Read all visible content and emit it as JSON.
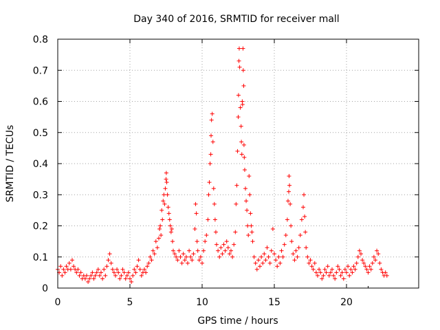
{
  "chart_data": {
    "type": "scatter",
    "title": "Day 340 of 2016, SRMTID for receiver mall",
    "xlabel": "GPS time / hours",
    "ylabel": "SRMTID / TECUs",
    "xlim": [
      0,
      25
    ],
    "ylim": [
      0,
      0.8
    ],
    "xticks": [
      0,
      5,
      10,
      15,
      20
    ],
    "xtick_labels": [
      "0",
      "5",
      "10",
      "15",
      "20"
    ],
    "yticks": [
      0,
      0.1,
      0.2,
      0.3,
      0.4,
      0.5,
      0.6,
      0.7,
      0.8
    ],
    "ytick_labels": [
      "0",
      "0.1",
      "0.2",
      "0.3",
      "0.4",
      "0.5",
      "0.6",
      "0.7",
      "0.8"
    ],
    "grid": true,
    "marker": "+",
    "color": "#ff0000",
    "series": [
      {
        "name": "SRMTID",
        "points": [
          [
            0.0,
            0.06
          ],
          [
            0.1,
            0.05
          ],
          [
            0.2,
            0.07
          ],
          [
            0.3,
            0.04
          ],
          [
            0.4,
            0.06
          ],
          [
            0.5,
            0.05
          ],
          [
            0.6,
            0.07
          ],
          [
            0.7,
            0.06
          ],
          [
            0.8,
            0.08
          ],
          [
            0.9,
            0.06
          ],
          [
            1.0,
            0.09
          ],
          [
            1.1,
            0.07
          ],
          [
            1.2,
            0.06
          ],
          [
            1.3,
            0.05
          ],
          [
            1.4,
            0.06
          ],
          [
            1.5,
            0.04
          ],
          [
            1.6,
            0.05
          ],
          [
            1.7,
            0.03
          ],
          [
            1.8,
            0.04
          ],
          [
            1.9,
            0.03
          ],
          [
            2.0,
            0.04
          ],
          [
            2.1,
            0.02
          ],
          [
            2.2,
            0.03
          ],
          [
            2.3,
            0.04
          ],
          [
            2.4,
            0.05
          ],
          [
            2.5,
            0.03
          ],
          [
            2.6,
            0.04
          ],
          [
            2.7,
            0.05
          ],
          [
            2.8,
            0.06
          ],
          [
            2.9,
            0.04
          ],
          [
            3.0,
            0.05
          ],
          [
            3.1,
            0.03
          ],
          [
            3.2,
            0.06
          ],
          [
            3.3,
            0.04
          ],
          [
            3.4,
            0.07
          ],
          [
            3.5,
            0.09
          ],
          [
            3.6,
            0.11
          ],
          [
            3.7,
            0.08
          ],
          [
            3.8,
            0.06
          ],
          [
            3.9,
            0.05
          ],
          [
            4.0,
            0.04
          ],
          [
            4.1,
            0.06
          ],
          [
            4.2,
            0.05
          ],
          [
            4.3,
            0.03
          ],
          [
            4.4,
            0.04
          ],
          [
            4.5,
            0.06
          ],
          [
            4.6,
            0.05
          ],
          [
            4.7,
            0.03
          ],
          [
            4.8,
            0.04
          ],
          [
            4.9,
            0.05
          ],
          [
            5.0,
            0.03
          ],
          [
            5.1,
            0.02
          ],
          [
            5.2,
            0.04
          ],
          [
            5.3,
            0.06
          ],
          [
            5.4,
            0.05
          ],
          [
            5.5,
            0.07
          ],
          [
            5.6,
            0.09
          ],
          [
            5.7,
            0.06
          ],
          [
            5.8,
            0.04
          ],
          [
            5.9,
            0.05
          ],
          [
            6.0,
            0.06
          ],
          [
            6.1,
            0.05
          ],
          [
            6.2,
            0.07
          ],
          [
            6.3,
            0.08
          ],
          [
            6.4,
            0.1
          ],
          [
            6.5,
            0.09
          ],
          [
            6.6,
            0.12
          ],
          [
            6.7,
            0.11
          ],
          [
            6.8,
            0.15
          ],
          [
            6.9,
            0.13
          ],
          [
            7.0,
            0.16
          ],
          [
            7.05,
            0.19
          ],
          [
            7.1,
            0.2
          ],
          [
            7.15,
            0.17
          ],
          [
            7.2,
            0.25
          ],
          [
            7.25,
            0.22
          ],
          [
            7.3,
            0.28
          ],
          [
            7.35,
            0.3
          ],
          [
            7.4,
            0.27
          ],
          [
            7.45,
            0.32
          ],
          [
            7.5,
            0.35
          ],
          [
            7.52,
            0.37
          ],
          [
            7.55,
            0.34
          ],
          [
            7.6,
            0.3
          ],
          [
            7.65,
            0.26
          ],
          [
            7.7,
            0.24
          ],
          [
            7.75,
            0.22
          ],
          [
            7.8,
            0.2
          ],
          [
            7.85,
            0.18
          ],
          [
            7.9,
            0.19
          ],
          [
            7.95,
            0.15
          ],
          [
            8.0,
            0.12
          ],
          [
            8.1,
            0.11
          ],
          [
            8.2,
            0.1
          ],
          [
            8.3,
            0.09
          ],
          [
            8.4,
            0.12
          ],
          [
            8.5,
            0.1
          ],
          [
            8.6,
            0.08
          ],
          [
            8.7,
            0.11
          ],
          [
            8.8,
            0.09
          ],
          [
            8.9,
            0.1
          ],
          [
            9.0,
            0.08
          ],
          [
            9.1,
            0.12
          ],
          [
            9.2,
            0.1
          ],
          [
            9.3,
            0.09
          ],
          [
            9.4,
            0.11
          ],
          [
            9.5,
            0.19
          ],
          [
            9.55,
            0.27
          ],
          [
            9.6,
            0.24
          ],
          [
            9.65,
            0.15
          ],
          [
            9.7,
            0.12
          ],
          [
            9.8,
            0.09
          ],
          [
            9.9,
            0.1
          ],
          [
            10.0,
            0.08
          ],
          [
            10.1,
            0.12
          ],
          [
            10.2,
            0.15
          ],
          [
            10.3,
            0.17
          ],
          [
            10.4,
            0.22
          ],
          [
            10.45,
            0.3
          ],
          [
            10.5,
            0.34
          ],
          [
            10.55,
            0.4
          ],
          [
            10.6,
            0.43
          ],
          [
            10.62,
            0.49
          ],
          [
            10.65,
            0.54
          ],
          [
            10.7,
            0.56
          ],
          [
            10.75,
            0.47
          ],
          [
            10.8,
            0.32
          ],
          [
            10.85,
            0.27
          ],
          [
            10.9,
            0.22
          ],
          [
            10.95,
            0.18
          ],
          [
            11.0,
            0.14
          ],
          [
            11.1,
            0.12
          ],
          [
            11.2,
            0.1
          ],
          [
            11.3,
            0.13
          ],
          [
            11.4,
            0.11
          ],
          [
            11.5,
            0.14
          ],
          [
            11.6,
            0.12
          ],
          [
            11.7,
            0.15
          ],
          [
            11.8,
            0.13
          ],
          [
            11.9,
            0.11
          ],
          [
            12.0,
            0.12
          ],
          [
            12.1,
            0.1
          ],
          [
            12.2,
            0.14
          ],
          [
            12.3,
            0.18
          ],
          [
            12.35,
            0.27
          ],
          [
            12.4,
            0.33
          ],
          [
            12.45,
            0.44
          ],
          [
            12.5,
            0.55
          ],
          [
            12.52,
            0.62
          ],
          [
            12.55,
            0.73
          ],
          [
            12.57,
            0.77
          ],
          [
            12.6,
            0.71
          ],
          [
            12.65,
            0.58
          ],
          [
            12.7,
            0.52
          ],
          [
            12.72,
            0.47
          ],
          [
            12.75,
            0.43
          ],
          [
            12.78,
            0.6
          ],
          [
            12.8,
            0.59
          ],
          [
            12.83,
            0.77
          ],
          [
            12.85,
            0.7
          ],
          [
            12.88,
            0.65
          ],
          [
            12.9,
            0.46
          ],
          [
            12.92,
            0.42
          ],
          [
            12.95,
            0.38
          ],
          [
            13.0,
            0.32
          ],
          [
            13.05,
            0.28
          ],
          [
            13.1,
            0.25
          ],
          [
            13.15,
            0.2
          ],
          [
            13.2,
            0.17
          ],
          [
            13.25,
            0.36
          ],
          [
            13.3,
            0.3
          ],
          [
            13.35,
            0.24
          ],
          [
            13.4,
            0.2
          ],
          [
            13.45,
            0.18
          ],
          [
            13.5,
            0.15
          ],
          [
            13.6,
            0.1
          ],
          [
            13.7,
            0.08
          ],
          [
            13.8,
            0.06
          ],
          [
            13.9,
            0.09
          ],
          [
            14.0,
            0.07
          ],
          [
            14.1,
            0.1
          ],
          [
            14.2,
            0.08
          ],
          [
            14.3,
            0.11
          ],
          [
            14.4,
            0.09
          ],
          [
            14.5,
            0.13
          ],
          [
            14.6,
            0.1
          ],
          [
            14.7,
            0.08
          ],
          [
            14.8,
            0.12
          ],
          [
            14.9,
            0.19
          ],
          [
            15.0,
            0.11
          ],
          [
            15.1,
            0.09
          ],
          [
            15.2,
            0.07
          ],
          [
            15.3,
            0.1
          ],
          [
            15.4,
            0.08
          ],
          [
            15.5,
            0.12
          ],
          [
            15.6,
            0.1
          ],
          [
            15.7,
            0.14
          ],
          [
            15.8,
            0.17
          ],
          [
            15.9,
            0.22
          ],
          [
            15.95,
            0.28
          ],
          [
            16.0,
            0.31
          ],
          [
            16.02,
            0.36
          ],
          [
            16.05,
            0.33
          ],
          [
            16.1,
            0.27
          ],
          [
            16.15,
            0.2
          ],
          [
            16.2,
            0.15
          ],
          [
            16.3,
            0.11
          ],
          [
            16.4,
            0.09
          ],
          [
            16.5,
            0.12
          ],
          [
            16.6,
            0.1
          ],
          [
            16.7,
            0.13
          ],
          [
            16.8,
            0.17
          ],
          [
            16.9,
            0.22
          ],
          [
            17.0,
            0.26
          ],
          [
            17.05,
            0.3
          ],
          [
            17.1,
            0.23
          ],
          [
            17.15,
            0.18
          ],
          [
            17.2,
            0.13
          ],
          [
            17.3,
            0.1
          ],
          [
            17.4,
            0.08
          ],
          [
            17.5,
            0.09
          ],
          [
            17.6,
            0.07
          ],
          [
            17.7,
            0.06
          ],
          [
            17.8,
            0.08
          ],
          [
            17.9,
            0.05
          ],
          [
            18.0,
            0.04
          ],
          [
            18.1,
            0.06
          ],
          [
            18.2,
            0.05
          ],
          [
            18.3,
            0.03
          ],
          [
            18.4,
            0.04
          ],
          [
            18.5,
            0.06
          ],
          [
            18.6,
            0.05
          ],
          [
            18.7,
            0.07
          ],
          [
            18.8,
            0.04
          ],
          [
            18.9,
            0.05
          ],
          [
            19.0,
            0.06
          ],
          [
            19.1,
            0.04
          ],
          [
            19.2,
            0.03
          ],
          [
            19.3,
            0.05
          ],
          [
            19.4,
            0.07
          ],
          [
            19.5,
            0.06
          ],
          [
            19.6,
            0.04
          ],
          [
            19.7,
            0.05
          ],
          [
            19.8,
            0.03
          ],
          [
            19.9,
            0.06
          ],
          [
            20.0,
            0.05
          ],
          [
            20.1,
            0.07
          ],
          [
            20.2,
            0.04
          ],
          [
            20.3,
            0.06
          ],
          [
            20.4,
            0.05
          ],
          [
            20.5,
            0.07
          ],
          [
            20.6,
            0.06
          ],
          [
            20.7,
            0.08
          ],
          [
            20.8,
            0.1
          ],
          [
            20.9,
            0.12
          ],
          [
            21.0,
            0.11
          ],
          [
            21.1,
            0.09
          ],
          [
            21.2,
            0.08
          ],
          [
            21.3,
            0.07
          ],
          [
            21.4,
            0.06
          ],
          [
            21.5,
            0.05
          ],
          [
            21.6,
            0.07
          ],
          [
            21.7,
            0.06
          ],
          [
            21.8,
            0.08
          ],
          [
            21.9,
            0.1
          ],
          [
            22.0,
            0.09
          ],
          [
            22.1,
            0.12
          ],
          [
            22.2,
            0.11
          ],
          [
            22.3,
            0.08
          ],
          [
            22.4,
            0.06
          ],
          [
            22.5,
            0.05
          ],
          [
            22.6,
            0.04
          ],
          [
            22.7,
            0.05
          ],
          [
            22.8,
            0.04
          ]
        ]
      }
    ]
  }
}
